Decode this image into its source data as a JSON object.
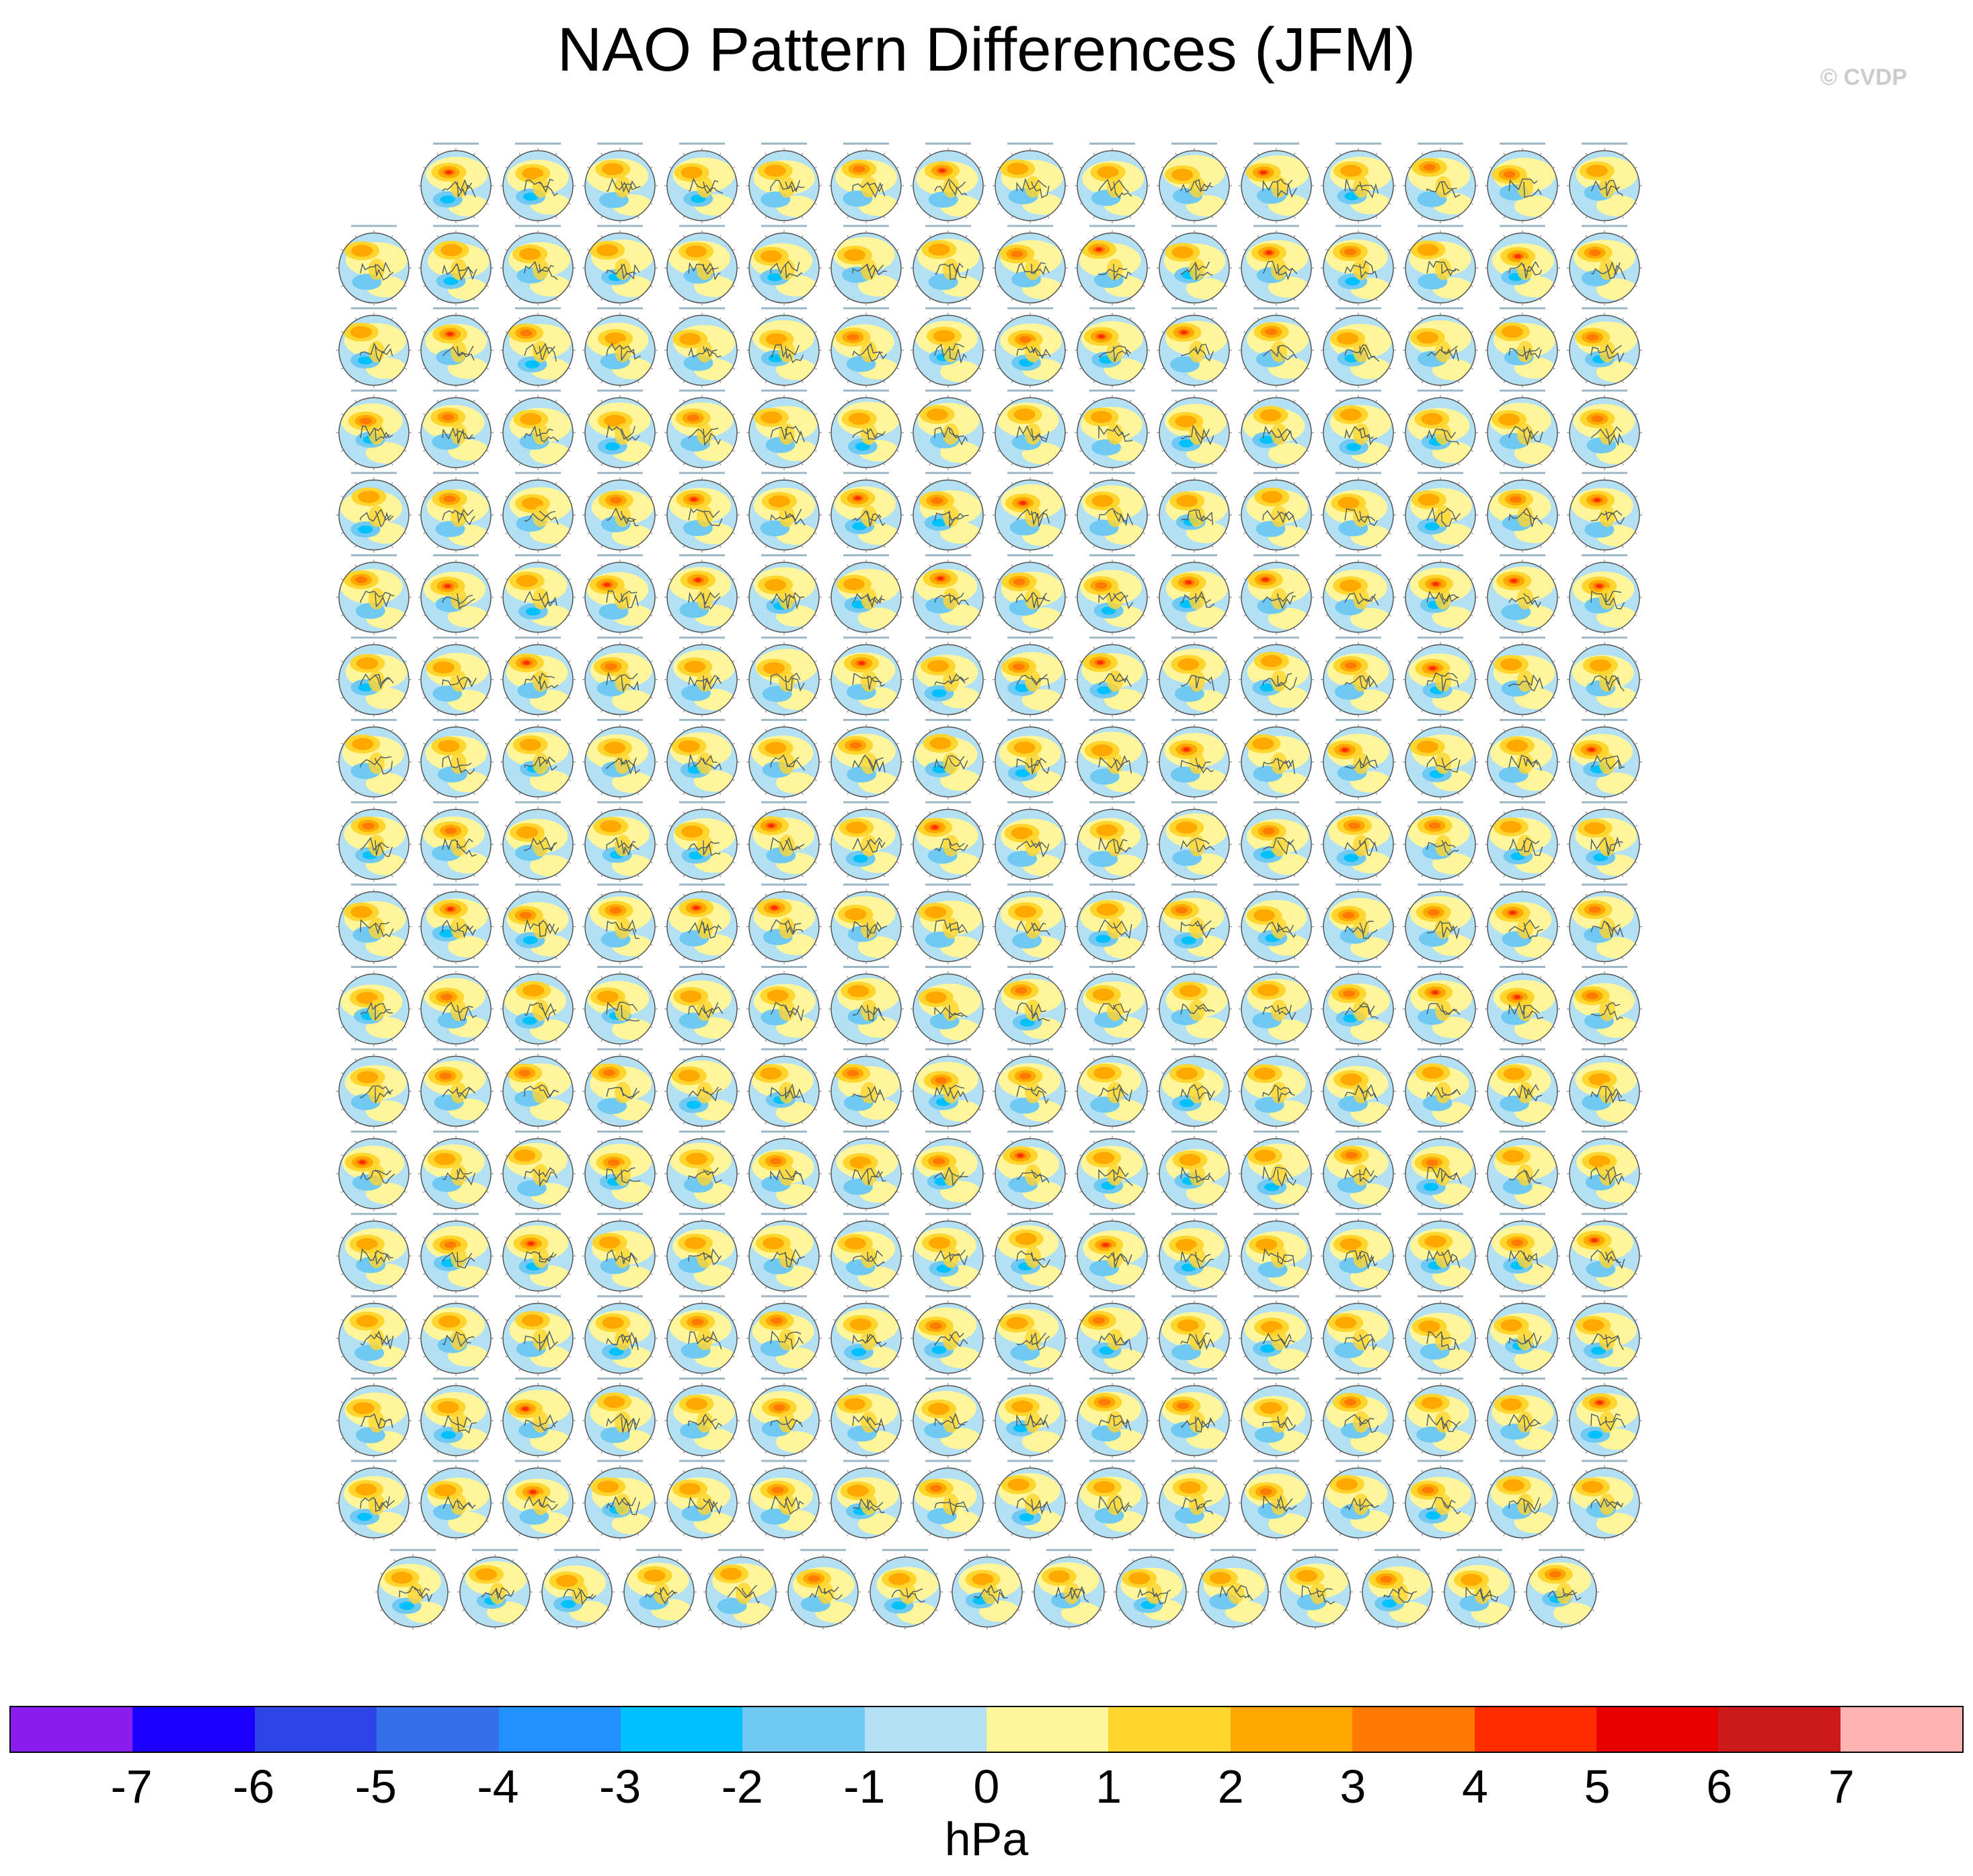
{
  "title": "NAO Pattern Differences (JFM)",
  "watermark": "© CVDP",
  "colorbar": {
    "units": "hPa",
    "ticks": [
      "-7",
      "-6",
      "-5",
      "-4",
      "-3",
      "-2",
      "-1",
      "0",
      "1",
      "2",
      "3",
      "4",
      "5",
      "6",
      "7"
    ],
    "colors": [
      "#8a1ef0",
      "#1b00ff",
      "#2d44e6",
      "#3471e8",
      "#2390ff",
      "#00c1ff",
      "#6fc9f2",
      "#b3e0f3",
      "#fff59a",
      "#ffd52e",
      "#ffa800",
      "#ff7a00",
      "#ff2d00",
      "#e60000",
      "#cc1a1a",
      "#ffb3b3"
    ]
  },
  "chart_data": {
    "type": "heatmap",
    "title": "NAO Pattern Differences (JFM)",
    "description_of_values": "Grid of polar-stereographic sea level pressure difference maps; values in hPa",
    "value_range": [
      -7,
      7
    ],
    "colorbar_units": "hPa",
    "panel_rows": [
      15,
      16,
      16,
      16,
      16,
      16,
      16,
      16,
      16,
      16,
      16,
      16,
      16,
      16,
      16,
      16,
      16,
      15
    ],
    "panel_count": 286
  }
}
